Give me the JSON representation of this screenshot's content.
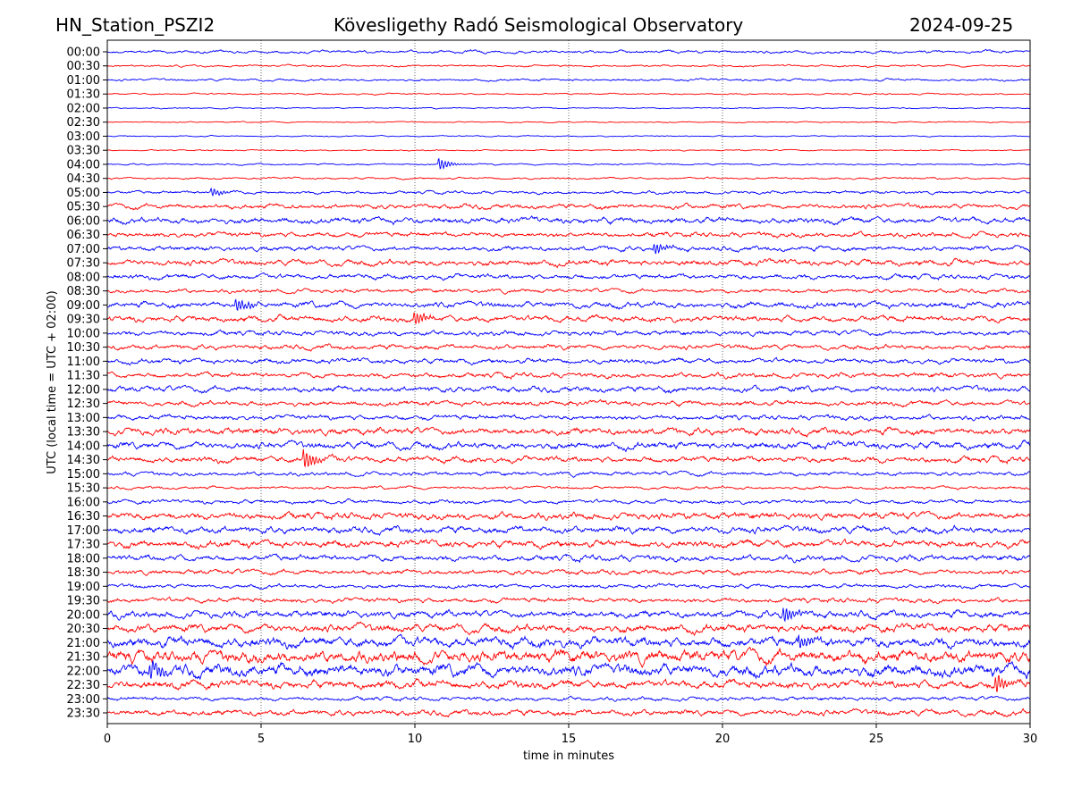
{
  "header": {
    "station": "HN_Station_PSZI2",
    "observatory": "Kövesligethy Radó Seismological Observatory",
    "date": "2024-09-25"
  },
  "chart_data": {
    "type": "line",
    "subtype": "helicorder",
    "xlabel": "time in minutes",
    "ylabel": "UTC (local time = UTC + 02:00)",
    "xlim": [
      0,
      30
    ],
    "x_ticks": [
      "0",
      "5",
      "10",
      "15",
      "20",
      "25",
      "30"
    ],
    "grid": "vertical dotted at 5-minute intervals",
    "colors": [
      "#0000ff",
      "#ff0000"
    ],
    "trace_labels": [
      "00:00",
      "00:30",
      "01:00",
      "01:30",
      "02:00",
      "02:30",
      "03:00",
      "03:30",
      "04:00",
      "04:30",
      "05:00",
      "05:30",
      "06:00",
      "06:30",
      "07:00",
      "07:30",
      "08:00",
      "08:30",
      "09:00",
      "09:30",
      "10:00",
      "10:30",
      "11:00",
      "11:30",
      "12:00",
      "12:30",
      "13:00",
      "13:30",
      "14:00",
      "14:30",
      "15:00",
      "15:30",
      "16:00",
      "16:30",
      "17:00",
      "17:30",
      "18:00",
      "18:30",
      "19:00",
      "19:30",
      "20:00",
      "20:30",
      "21:00",
      "21:30",
      "22:00",
      "22:30",
      "23:00",
      "23:30"
    ],
    "noise_level": [
      1.5,
      1,
      1.2,
      0.8,
      0.6,
      0.6,
      0.6,
      0.6,
      0.8,
      1,
      1.5,
      2.5,
      3,
      2.5,
      2.5,
      3,
      2.5,
      2,
      3,
      3,
      2.5,
      2.5,
      2.5,
      2.5,
      3,
      2.5,
      2.5,
      3.5,
      3.5,
      3,
      2,
      1.5,
      2,
      3.5,
      3.5,
      3.5,
      3,
      2.5,
      2,
      2.5,
      3.5,
      4,
      5,
      6,
      6,
      4,
      2,
      3
    ],
    "events": [
      {
        "trace": "04:00",
        "minute": 10.8,
        "amplitude": 6
      },
      {
        "trace": "05:00",
        "minute": 3.4,
        "amplitude": 4
      },
      {
        "trace": "07:00",
        "minute": 17.8,
        "amplitude": 6
      },
      {
        "trace": "09:00",
        "minute": 4.2,
        "amplitude": 7
      },
      {
        "trace": "09:30",
        "minute": 10,
        "amplitude": 7
      },
      {
        "trace": "14:30",
        "minute": 6.4,
        "amplitude": 10
      },
      {
        "trace": "20:00",
        "minute": 22,
        "amplitude": 8
      },
      {
        "trace": "21:00",
        "minute": 22.5,
        "amplitude": 8
      },
      {
        "trace": "22:00",
        "minute": 1.4,
        "amplitude": 10
      },
      {
        "trace": "22:30",
        "minute": 28.9,
        "amplitude": 10
      }
    ]
  }
}
